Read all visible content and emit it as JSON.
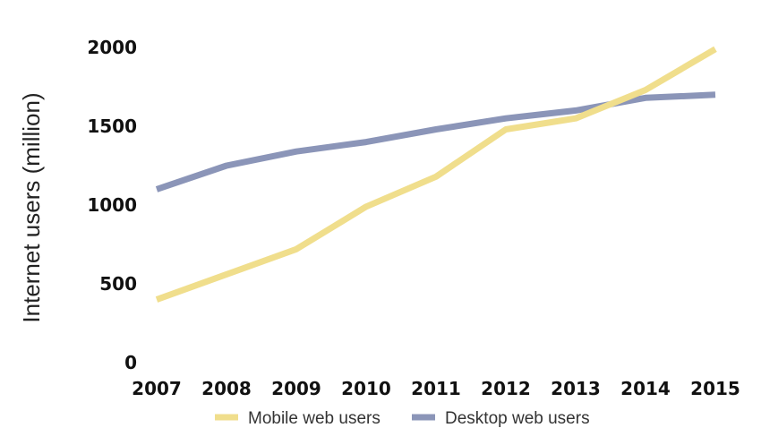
{
  "chart_data": {
    "type": "line",
    "title": "",
    "xlabel": "",
    "ylabel": "Internet users (million)",
    "x": [
      "2007",
      "2008",
      "2009",
      "2010",
      "2011",
      "2012",
      "2013",
      "2014",
      "2015"
    ],
    "yticks": [
      "0",
      "500",
      "1000",
      "1500",
      "2000"
    ],
    "ylim": [
      0,
      2000
    ],
    "grid": false,
    "legend_position": "bottom",
    "series": [
      {
        "name": "Mobile web users",
        "color": "#f0de8c",
        "values": [
          400,
          560,
          720,
          990,
          1180,
          1480,
          1550,
          1730,
          1990
        ]
      },
      {
        "name": "Desktop web users",
        "color": "#8b95b8",
        "values": [
          1100,
          1250,
          1340,
          1400,
          1480,
          1550,
          1600,
          1680,
          1700
        ]
      }
    ]
  }
}
